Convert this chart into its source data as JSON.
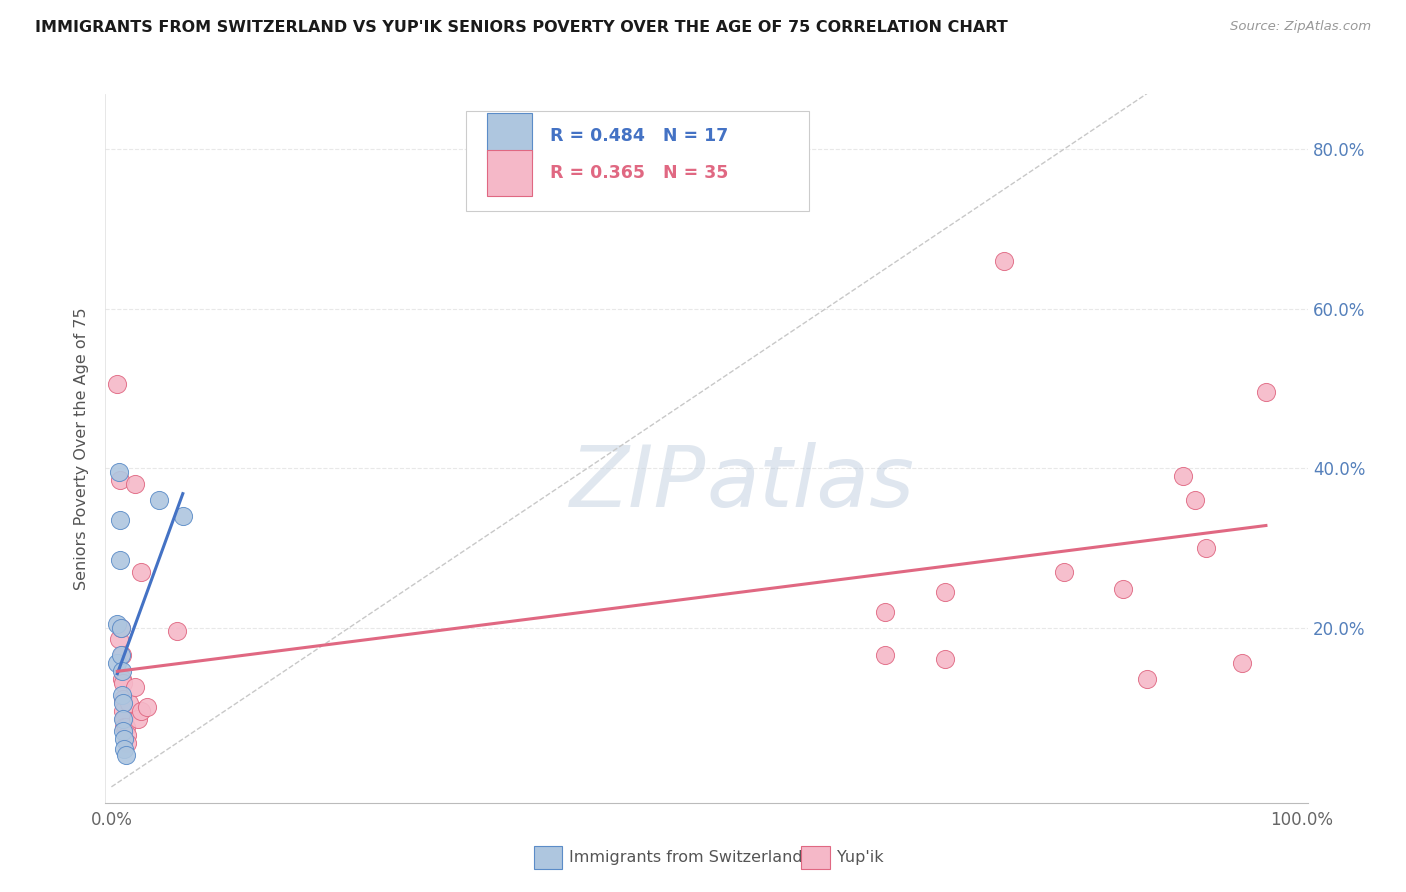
{
  "title": "IMMIGRANTS FROM SWITZERLAND VS YUP'IK SENIORS POVERTY OVER THE AGE OF 75 CORRELATION CHART",
  "source": "Source: ZipAtlas.com",
  "ylabel": "Seniors Poverty Over the Age of 75",
  "xlim": [
    -0.005,
    1.005
  ],
  "ylim": [
    -0.02,
    0.87
  ],
  "ytick_vals": [
    0.0,
    0.2,
    0.4,
    0.6,
    0.8
  ],
  "ytick_labels_right": [
    "",
    "20.0%",
    "40.0%",
    "60.0%",
    "80.0%"
  ],
  "xtick_vals": [
    0.0,
    1.0
  ],
  "xtick_labels": [
    "0.0%",
    "100.0%"
  ],
  "legend_R_blue": "R = 0.484",
  "legend_N_blue": "N = 17",
  "legend_R_pink": "R = 0.365",
  "legend_N_pink": "N = 35",
  "legend_label_blue": "Immigrants from Switzerland",
  "legend_label_pink": "Yup'ik",
  "blue_points_x": [
    0.005,
    0.005,
    0.006,
    0.007,
    0.007,
    0.008,
    0.008,
    0.009,
    0.009,
    0.01,
    0.01,
    0.01,
    0.011,
    0.011,
    0.012,
    0.04,
    0.06
  ],
  "blue_points_y": [
    0.205,
    0.155,
    0.395,
    0.335,
    0.285,
    0.2,
    0.165,
    0.145,
    0.115,
    0.105,
    0.085,
    0.07,
    0.06,
    0.048,
    0.04,
    0.36,
    0.34
  ],
  "pink_points_x": [
    0.005,
    0.006,
    0.007,
    0.008,
    0.009,
    0.009,
    0.01,
    0.01,
    0.01,
    0.011,
    0.011,
    0.012,
    0.013,
    0.013,
    0.015,
    0.02,
    0.02,
    0.022,
    0.025,
    0.025,
    0.03,
    0.055,
    0.65,
    0.65,
    0.7,
    0.7,
    0.75,
    0.8,
    0.85,
    0.87,
    0.9,
    0.91,
    0.92,
    0.95,
    0.97
  ],
  "pink_points_y": [
    0.505,
    0.185,
    0.385,
    0.2,
    0.165,
    0.135,
    0.13,
    0.11,
    0.095,
    0.085,
    0.075,
    0.075,
    0.065,
    0.055,
    0.105,
    0.38,
    0.125,
    0.085,
    0.27,
    0.095,
    0.1,
    0.195,
    0.22,
    0.165,
    0.245,
    0.16,
    0.66,
    0.27,
    0.248,
    0.135,
    0.39,
    0.36,
    0.3,
    0.155,
    0.495
  ],
  "blue_line_x": [
    0.005,
    0.06
  ],
  "blue_line_y": [
    0.142,
    0.368
  ],
  "pink_line_x": [
    0.005,
    0.97
  ],
  "pink_line_y": [
    0.145,
    0.328
  ],
  "diag_line_x": [
    0.0,
    0.87
  ],
  "diag_line_y": [
    0.0,
    0.87
  ],
  "blue_face": "#aec6df",
  "blue_edge": "#5b8cc8",
  "pink_face": "#f5b8c8",
  "pink_edge": "#e06882",
  "blue_line_color": "#4472c4",
  "pink_line_color": "#e06882",
  "diag_color": "#c8c8c8",
  "grid_color": "#e8e8e8",
  "watermark_zip_color": "#c8d8e8",
  "watermark_atlas_color": "#c0cede",
  "bg_color": "#ffffff"
}
